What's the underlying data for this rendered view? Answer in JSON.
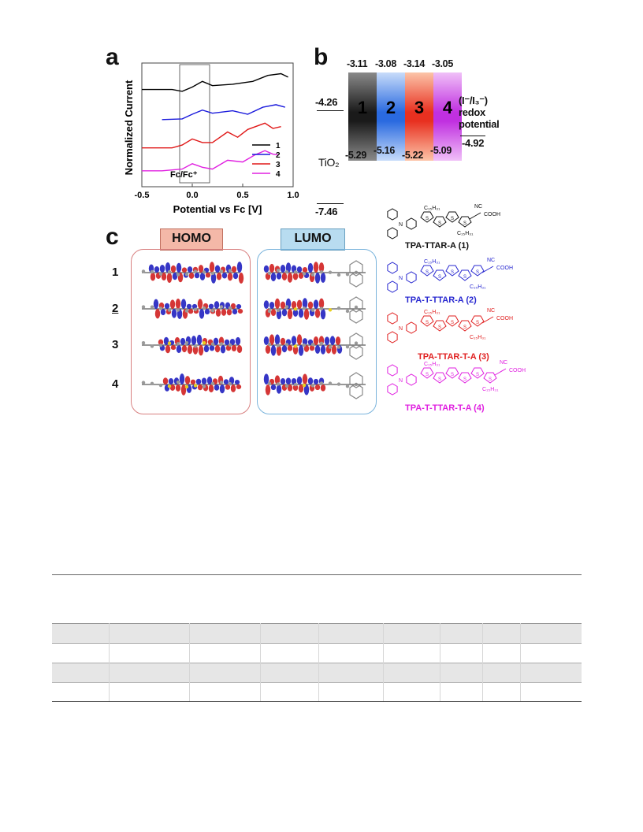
{
  "panel_a": {
    "label": "a",
    "ylabel": "Normalized Current",
    "xlabel": "Potential vs Fc [V]",
    "xticks": [
      "-0.5",
      "0.0",
      "0.5",
      "1.0"
    ],
    "box_label": "Fc/Fc⁺",
    "legend": [
      "1",
      "2",
      "3",
      "4"
    ],
    "colors": [
      "#000000",
      "#1a1adc",
      "#e01818",
      "#e020e0"
    ],
    "chart_data": {
      "type": "line",
      "xlabel": "Potential vs Fc [V]",
      "ylabel": "Normalized Current",
      "xlim": [
        -0.5,
        1.0
      ],
      "series": [
        {
          "name": "1",
          "x": [
            -0.5,
            -0.2,
            -0.1,
            0.0,
            0.1,
            0.2,
            0.4,
            0.6,
            0.75,
            0.88,
            0.95
          ],
          "y": [
            3.55,
            3.55,
            3.5,
            3.62,
            3.78,
            3.66,
            3.7,
            3.78,
            3.95,
            4.0,
            3.9
          ]
        },
        {
          "name": "2",
          "x": [
            -0.3,
            -0.1,
            0.0,
            0.1,
            0.2,
            0.4,
            0.55,
            0.7,
            0.83,
            0.92
          ],
          "y": [
            2.7,
            2.72,
            2.85,
            2.97,
            2.88,
            2.95,
            2.85,
            3.05,
            3.12,
            3.05
          ]
        },
        {
          "name": "3",
          "x": [
            -0.5,
            -0.2,
            -0.1,
            0.0,
            0.1,
            0.2,
            0.35,
            0.45,
            0.55,
            0.72,
            0.8,
            0.88
          ],
          "y": [
            1.9,
            1.9,
            1.98,
            2.15,
            2.05,
            2.05,
            2.35,
            2.2,
            2.42,
            2.6,
            2.45,
            2.5
          ]
        },
        {
          "name": "4",
          "x": [
            -0.5,
            -0.3,
            -0.1,
            0.0,
            0.1,
            0.2,
            0.35,
            0.5,
            0.62,
            0.72,
            0.8,
            0.85
          ],
          "y": [
            1.25,
            1.25,
            1.3,
            1.45,
            1.35,
            1.3,
            1.55,
            1.5,
            1.7,
            1.82,
            1.72,
            1.7
          ]
        }
      ]
    }
  },
  "panel_b": {
    "label": "b",
    "tio2_label": "TiO₂",
    "tio2_cb": "-4.26",
    "tio2_vb": "-7.46",
    "redox_label": "(I⁻/I₃⁻)\nredox\npotential",
    "redox_level": "-4.92",
    "dyes": [
      {
        "name": "1",
        "lumo": "-3.11",
        "homo": "-5.29",
        "color": "#202020"
      },
      {
        "name": "2",
        "lumo": "-3.08",
        "homo": "-5.16",
        "color": "#4d8ff0"
      },
      {
        "name": "3",
        "lumo": "-3.14",
        "homo": "-5.22",
        "color": "#f05545"
      },
      {
        "name": "4",
        "lumo": "-3.05",
        "homo": "-5.09",
        "color": "#d048e8"
      }
    ]
  },
  "panel_c": {
    "label": "c",
    "homo_title": "HOMO",
    "lumo_title": "LUMO",
    "row_labels": [
      "1",
      "2",
      "3",
      "4"
    ],
    "molecules": [
      {
        "name": "TPA-TTAR-A (1)",
        "color": "#111111"
      },
      {
        "name": "TPA-T-TTAR-A (2)",
        "color": "#2828d0"
      },
      {
        "name": "TPA-TTAR-T-A (3)",
        "color": "#e02020"
      },
      {
        "name": "TPA-T-TTAR-T-A (4)",
        "color": "#e020e0"
      }
    ],
    "struct_labels": {
      "alkyl": "C₁₅H₃₁",
      "cooh": "COOH",
      "nc": "NC"
    }
  }
}
